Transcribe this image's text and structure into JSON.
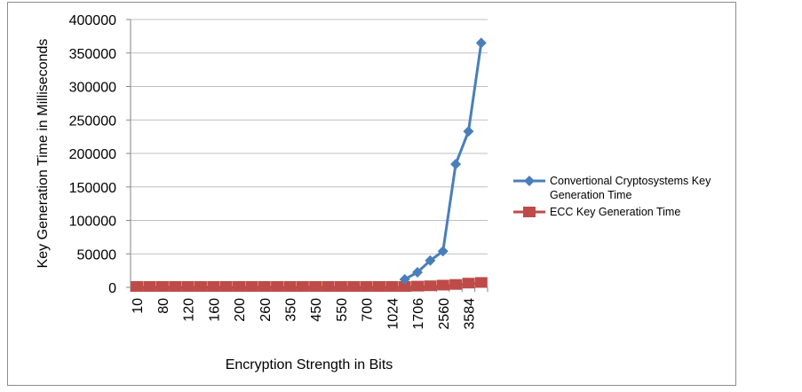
{
  "chart_data": {
    "type": "line",
    "title": "",
    "xlabel": "Encryption Strength in Bits",
    "ylabel": "Key Generation Time in Milliseconds",
    "ylim": [
      0,
      400000
    ],
    "yticks": [
      0,
      50000,
      100000,
      150000,
      200000,
      250000,
      300000,
      350000,
      400000
    ],
    "grid": "horizontal",
    "legend": "right",
    "categories": [
      "10",
      "",
      "80",
      "",
      "120",
      "",
      "160",
      "",
      "200",
      "",
      "260",
      "",
      "350",
      "",
      "450",
      "",
      "550",
      "",
      "700",
      "",
      "1024",
      "",
      "1706",
      "",
      "2560",
      "",
      "3584",
      ""
    ],
    "series": [
      {
        "name": "Convertional Cryptosystems Key Generation Time",
        "color": "#4a7ebb",
        "marker": "diamond",
        "values": [
          null,
          null,
          null,
          null,
          null,
          null,
          null,
          null,
          null,
          null,
          null,
          null,
          null,
          null,
          null,
          null,
          null,
          null,
          null,
          null,
          null,
          12000,
          22500,
          40000,
          54000,
          184000,
          233000,
          365000
        ]
      },
      {
        "name": "ECC Key Generation Time",
        "color": "#be4b48",
        "marker": "square",
        "values": [
          0,
          0,
          0,
          0,
          0,
          0,
          0,
          0,
          0,
          0,
          0,
          0,
          0,
          0,
          0,
          0,
          0,
          0,
          0,
          0,
          0,
          0,
          500,
          1000,
          2000,
          3000,
          5000,
          6000
        ]
      }
    ]
  }
}
